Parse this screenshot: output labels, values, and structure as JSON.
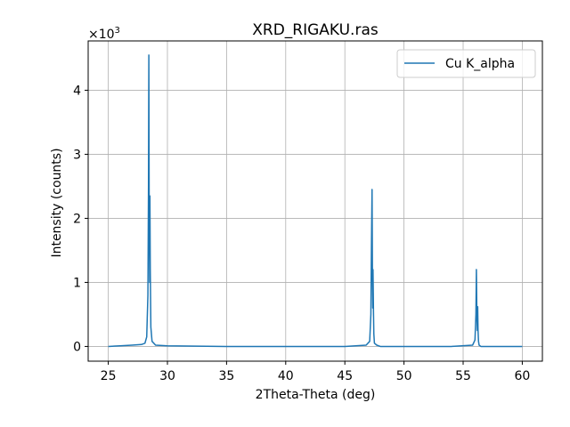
{
  "chart_data": {
    "type": "line",
    "title": "XRD_RIGAKU.ras",
    "xlabel": "2Theta-Theta (deg)",
    "ylabel": "Intensity (counts)",
    "y_scale_label": "×10",
    "y_scale_exponent": "3",
    "xlim": [
      23.3,
      61.7
    ],
    "ylim": [
      -0.23,
      4.77
    ],
    "x_ticks": [
      25,
      30,
      35,
      40,
      45,
      50,
      55,
      60
    ],
    "x_tick_labels": [
      "25",
      "30",
      "35",
      "40",
      "45",
      "50",
      "55",
      "60"
    ],
    "y_ticks": [
      0,
      1,
      2,
      3,
      4
    ],
    "y_tick_labels": [
      "0",
      "1",
      "2",
      "3",
      "4"
    ],
    "grid": true,
    "legend_position": "top-right",
    "series": [
      {
        "name": "Cu K_alpha",
        "color": "#1f77b4",
        "x": [
          25.0,
          26.0,
          27.0,
          27.8,
          28.1,
          28.25,
          28.35,
          28.4,
          28.43,
          28.46,
          28.5,
          28.52,
          28.55,
          28.6,
          28.7,
          29.0,
          30.0,
          35.0,
          40.0,
          45.0,
          46.8,
          47.1,
          47.2,
          47.25,
          47.3,
          47.33,
          47.36,
          47.38,
          47.42,
          47.45,
          47.5,
          47.7,
          48.0,
          50.0,
          54.0,
          55.8,
          56.0,
          56.08,
          56.12,
          56.16,
          56.2,
          56.23,
          56.26,
          56.3,
          56.35,
          56.5,
          57.0,
          60.0
        ],
        "y": [
          0.0,
          0.01,
          0.02,
          0.03,
          0.05,
          0.15,
          0.8,
          2.5,
          4.55,
          2.0,
          1.0,
          2.35,
          1.2,
          0.3,
          0.08,
          0.02,
          0.01,
          0.0,
          0.0,
          0.0,
          0.02,
          0.08,
          0.5,
          1.6,
          2.45,
          1.2,
          0.6,
          1.2,
          0.55,
          0.2,
          0.05,
          0.02,
          0.0,
          0.0,
          0.0,
          0.02,
          0.1,
          0.5,
          1.2,
          0.5,
          0.25,
          0.62,
          0.25,
          0.08,
          0.02,
          0.0,
          0.0,
          0.0
        ]
      }
    ]
  }
}
